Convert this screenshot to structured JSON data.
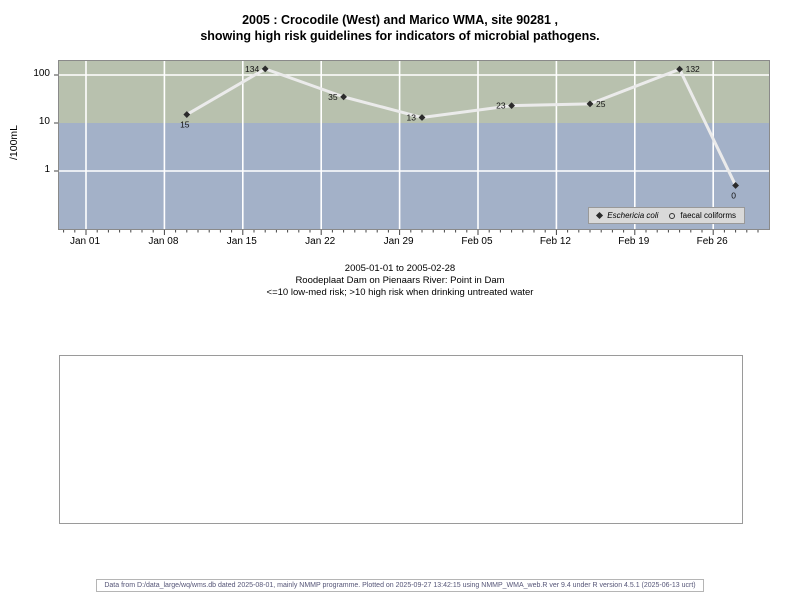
{
  "title": {
    "line1": "2005 : Crocodile (West) and Marico WMA, site 90281 ,",
    "line2": "showing high risk guidelines for indicators of microbial pathogens."
  },
  "y_axis": {
    "label": "/100mL",
    "tick_labels": [
      "100",
      "10",
      "1"
    ],
    "tick_values": [
      100,
      10,
      1
    ]
  },
  "x_axis": {
    "tick_labels": [
      "Jan 01",
      "Jan 08",
      "Jan 15",
      "Jan 22",
      "Jan 29",
      "Feb 05",
      "Feb 12",
      "Feb 19",
      "Feb 26"
    ],
    "tick_dates": [
      "2005-01-01",
      "2005-01-08",
      "2005-01-15",
      "2005-01-22",
      "2005-01-29",
      "2005-02-05",
      "2005-02-12",
      "2005-02-19",
      "2005-02-26"
    ]
  },
  "legend": {
    "items": [
      {
        "marker": "filled-diamond",
        "label": "Eschericia coli",
        "italic": true
      },
      {
        "marker": "open-circle",
        "label": "faecal coliforms",
        "italic": false
      }
    ]
  },
  "caption": {
    "line1": "2005-01-01 to 2005-02-28",
    "line2": "Roodeplaat Dam on Pienaars River: Point in Dam",
    "line3": "<=10 low-med risk; >10 high risk when drinking untreated water"
  },
  "footer": {
    "text": "Data from D:/data_large/wq/wms.db dated 2025-08-01, mainly NMMP programme. Plotted on 2025-09-27 13:42:15 using NMMP_WMA_web.R ver 9.4 under R version 4.5.1 (2025-06-13 ucrt)"
  },
  "colors": {
    "band_high_risk": "#b8c1ae",
    "band_low_risk": "#a3b1c8",
    "gridline": "#ffffff",
    "plot_border": "#8a8a8a",
    "series_line": "#ebebeb",
    "marker": "#2b2b2b",
    "legend_bg": "#d9d9d9",
    "footer_text": "#555577"
  },
  "chart_data": {
    "type": "line",
    "title": "2005 : Crocodile (West) and Marico WMA, site 90281 , showing high risk guidelines for indicators of microbial pathogens.",
    "xlabel": "",
    "ylabel": "/100mL",
    "y_scale": "log",
    "ylim": [
      0.06,
      190
    ],
    "x_period": [
      "2005-01-01",
      "2005-02-28"
    ],
    "risk_threshold": 10,
    "risk_note": "<=10 low-med risk; >10 high risk when drinking untreated water",
    "grid": "on",
    "legend_position": "bottom-right-inside",
    "series": [
      {
        "name": "Eschericia coli",
        "marker": "filled-diamond",
        "points": [
          {
            "date": "2005-01-10",
            "value": 15,
            "label": "15",
            "label_side": "below"
          },
          {
            "date": "2005-01-17",
            "value": 134,
            "label": "134",
            "label_side": "left"
          },
          {
            "date": "2005-01-24",
            "value": 35,
            "label": "35",
            "label_side": "left"
          },
          {
            "date": "2005-01-31",
            "value": 13,
            "label": "13",
            "label_side": "left"
          },
          {
            "date": "2005-02-08",
            "value": 23,
            "label": "23",
            "label_side": "left"
          },
          {
            "date": "2005-02-15",
            "value": 25,
            "label": "25",
            "label_side": "right"
          },
          {
            "date": "2005-02-23",
            "value": 132,
            "label": "132",
            "label_side": "right"
          },
          {
            "date": "2005-02-28",
            "value": 0,
            "label": "0",
            "label_side": "below"
          }
        ]
      },
      {
        "name": "faecal coliforms",
        "marker": "open-circle",
        "points": []
      }
    ]
  }
}
